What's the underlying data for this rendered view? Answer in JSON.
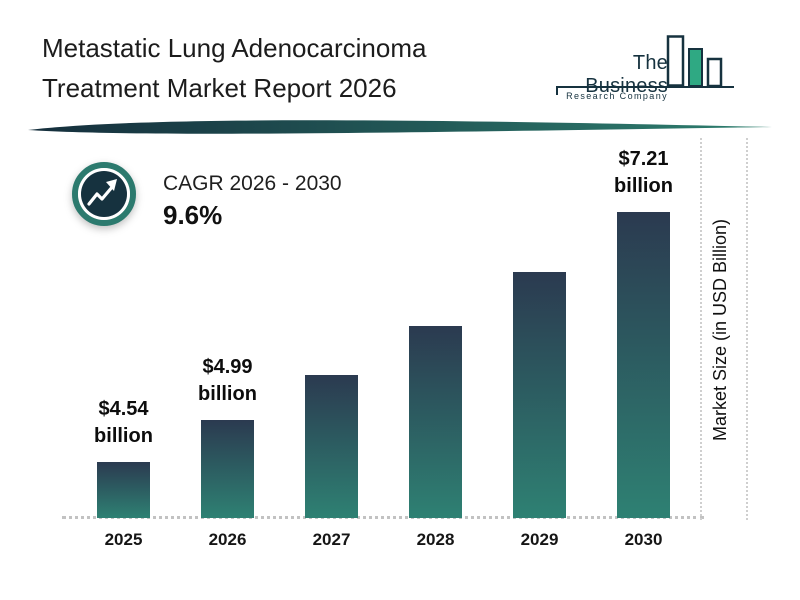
{
  "header": {
    "title_line1": "Metastatic Lung Adenocarcinoma",
    "title_line2": "Treatment Market Report 2026",
    "logo": {
      "name_top": "The Business",
      "name_bottom": "Research Company"
    }
  },
  "cagr": {
    "label": "CAGR 2026 - 2030",
    "value": "9.6%"
  },
  "chart_data": {
    "type": "bar",
    "title": "Metastatic Lung Adenocarcinoma Treatment Market Report 2026",
    "categories": [
      "2025",
      "2026",
      "2027",
      "2028",
      "2029",
      "2030"
    ],
    "values": [
      4.54,
      4.99,
      5.47,
      5.99,
      6.57,
      7.21
    ],
    "value_labels": [
      {
        "amount": "$4.54",
        "unit": "billion"
      },
      {
        "amount": "$4.99",
        "unit": "billion"
      },
      null,
      null,
      null,
      {
        "amount": "$7.21",
        "unit": "billion"
      }
    ],
    "ylabel": "Market Size (in USD Billion)",
    "xlabel": "",
    "unit": "USD billion",
    "baseline_not_zero": true,
    "legend": null,
    "grid": "dotted baseline and right-side vertical dotted lines"
  },
  "theme": {
    "bar_top": "#2b3a50",
    "bar_bottom": "#2e8173",
    "accent_teal": "#2c7a6e",
    "dark_navy": "#16323f",
    "logo_green": "#2fa983"
  }
}
